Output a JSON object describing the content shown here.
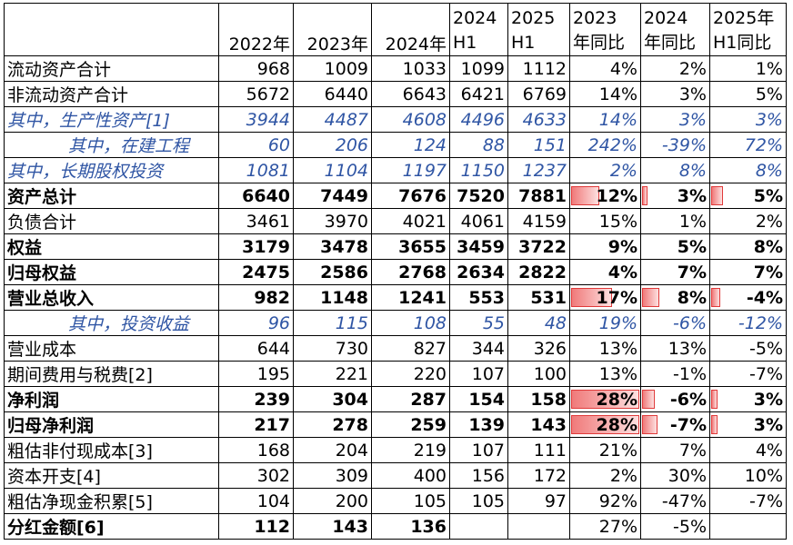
{
  "columns": [
    "",
    "2022年",
    "2023年",
    "2024年",
    "2024 H1",
    "2025 H1",
    "2023年同比",
    "2024年同比",
    "2025年H1同比"
  ],
  "header_lines": [
    [
      "",
      ""
    ],
    [
      "",
      "2022年"
    ],
    [
      "",
      "2023年"
    ],
    [
      "",
      "2024年"
    ],
    [
      "2024",
      "H1"
    ],
    [
      "2025",
      "H1"
    ],
    [
      "2023",
      "年同比"
    ],
    [
      "2024",
      "年同比"
    ],
    [
      "2025年",
      "H1同比"
    ]
  ],
  "rows": [
    {
      "label": "流动资产合计",
      "style": "normal",
      "cells": [
        "968",
        "1009",
        "1033",
        "1099",
        "1112",
        "4%",
        "2%",
        "1%"
      ]
    },
    {
      "label": "非流动资产合计",
      "style": "normal",
      "cells": [
        "5672",
        "6440",
        "6643",
        "6421",
        "6769",
        "14%",
        "3%",
        "5%"
      ]
    },
    {
      "label": "其中，生产性资产[1]",
      "style": "sub",
      "indent": false,
      "cells": [
        "3944",
        "4487",
        "4608",
        "4496",
        "4633",
        "14%",
        "3%",
        "3%"
      ]
    },
    {
      "label": "其中，在建工程",
      "style": "sub",
      "indent": true,
      "cells": [
        "60",
        "206",
        "124",
        "88",
        "151",
        "242%",
        "-39%",
        "72%"
      ]
    },
    {
      "label": "其中，长期股权投资",
      "style": "sub",
      "indent": false,
      "cells": [
        "1081",
        "1104",
        "1197",
        "1150",
        "1237",
        "2%",
        "8%",
        "8%"
      ]
    },
    {
      "label": "资产总计",
      "style": "bold",
      "cells": [
        "6640",
        "7449",
        "7676",
        "7520",
        "7881",
        "12%",
        "3%",
        "5%"
      ],
      "bars": [
        0.12,
        0.03,
        0.05
      ]
    },
    {
      "label": "负债合计",
      "style": "normal",
      "cells": [
        "3461",
        "3970",
        "4021",
        "4061",
        "4159",
        "15%",
        "1%",
        "2%"
      ]
    },
    {
      "label": "权益",
      "style": "bold",
      "cells": [
        "3179",
        "3478",
        "3655",
        "3459",
        "3722",
        "9%",
        "5%",
        "8%"
      ]
    },
    {
      "label": "归母权益",
      "style": "bold",
      "cells": [
        "2475",
        "2586",
        "2768",
        "2634",
        "2822",
        "4%",
        "7%",
        "7%"
      ]
    },
    {
      "label": "营业总收入",
      "style": "bold",
      "cells": [
        "982",
        "1148",
        "1241",
        "553",
        "531",
        "17%",
        "8%",
        "-4%"
      ],
      "bars": [
        0.17,
        0.08,
        0.04
      ]
    },
    {
      "label": "其中，投资收益",
      "style": "sub",
      "indent": true,
      "cells": [
        "96",
        "115",
        "108",
        "55",
        "48",
        "19%",
        "-6%",
        "-12%"
      ]
    },
    {
      "label": "营业成本",
      "style": "normal",
      "cells": [
        "644",
        "730",
        "827",
        "344",
        "326",
        "13%",
        "13%",
        "-5%"
      ]
    },
    {
      "label": "期间费用与税费[2]",
      "style": "normal",
      "cells": [
        "195",
        "221",
        "220",
        "107",
        "100",
        "13%",
        "-1%",
        "-7%"
      ]
    },
    {
      "label": "净利润",
      "style": "bold",
      "cells": [
        "239",
        "304",
        "287",
        "154",
        "158",
        "28%",
        "-6%",
        "3%"
      ],
      "bars": [
        0.28,
        0.06,
        0.03
      ]
    },
    {
      "label": "归母净利润",
      "style": "bold",
      "cells": [
        "217",
        "278",
        "259",
        "139",
        "143",
        "28%",
        "-7%",
        "3%"
      ],
      "bars": [
        0.28,
        0.07,
        0.03
      ]
    },
    {
      "label": "粗估非付现成本[3]",
      "style": "normal",
      "cells": [
        "168",
        "204",
        "219",
        "107",
        "111",
        "21%",
        "7%",
        "4%"
      ]
    },
    {
      "label": "资本开支[4]",
      "style": "normal",
      "cells": [
        "302",
        "309",
        "400",
        "156",
        "172",
        "2%",
        "30%",
        "10%"
      ]
    },
    {
      "label": "粗估净现金积累[5]",
      "style": "normal",
      "cells": [
        "104",
        "200",
        "105",
        "105",
        "97",
        "92%",
        "-47%",
        "-7%"
      ]
    },
    {
      "label": "分红金额[6]",
      "style": "bold-label",
      "cells": [
        "112",
        "143",
        "136",
        "",
        "",
        "27%",
        "-5%",
        ""
      ]
    }
  ],
  "bar_max_fraction": 0.28,
  "colors": {
    "sub_text": "#2f55a4",
    "bar_fill": "#f07a7a",
    "bar_border": "#e03a3a"
  }
}
